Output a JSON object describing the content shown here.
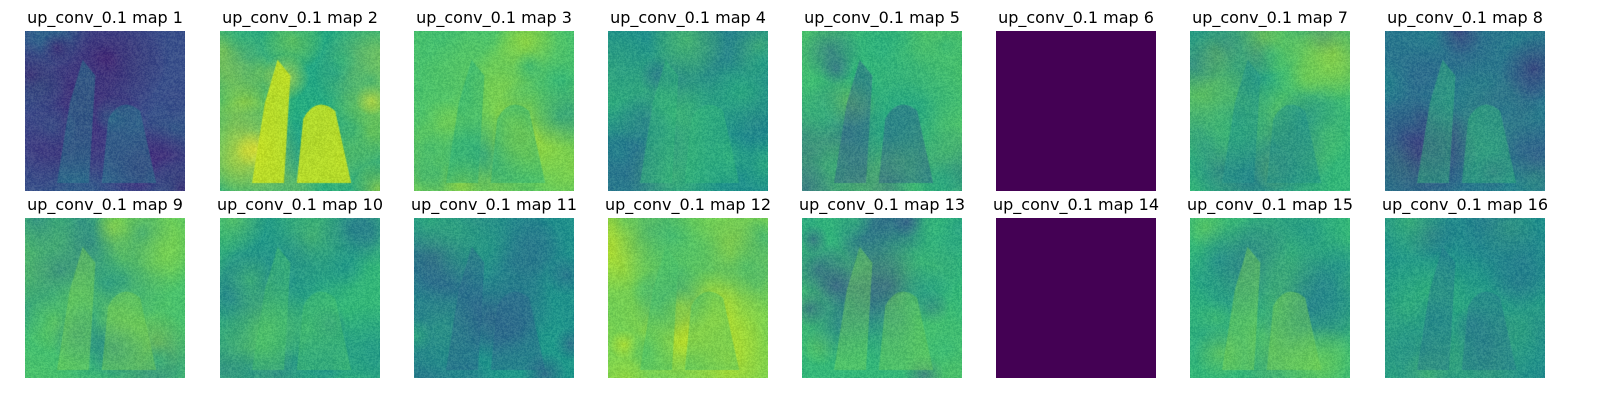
{
  "figure": {
    "panels": [
      {
        "title": "up_conv_0.1 map 1",
        "palette": [
          "#3b518b",
          "#46317e",
          "#2c718e",
          "#481b6d",
          "#26818e",
          "#3e4a89"
        ],
        "style": "dark-blotchy"
      },
      {
        "title": "up_conv_0.1 map 2",
        "palette": [
          "#27ad81",
          "#7ad151",
          "#c2df23",
          "#35b779",
          "#1f988b",
          "#fde725"
        ],
        "style": "bright-bottle"
      },
      {
        "title": "up_conv_0.1 map 3",
        "palette": [
          "#4ac16d",
          "#7ad151",
          "#2db27d",
          "#b5de2b",
          "#20a486",
          "#1f968b"
        ],
        "style": "green-bag"
      },
      {
        "title": "up_conv_0.1 map 4",
        "palette": [
          "#21918c",
          "#2a788e",
          "#35b779",
          "#1e9b8a",
          "#52c569",
          "#31688e"
        ],
        "style": "teal-mid"
      },
      {
        "title": "up_conv_0.1 map 5",
        "palette": [
          "#4ac16d",
          "#35b779",
          "#29af7f",
          "#6ece58",
          "#355f8d",
          "#1fa088"
        ],
        "style": "green-dark-patch"
      },
      {
        "title": "up_conv_0.1 map 6",
        "palette": [
          "#440154"
        ],
        "style": "solid"
      },
      {
        "title": "up_conv_0.1 map 7",
        "palette": [
          "#35b779",
          "#7ad151",
          "#21918c",
          "#a5db36",
          "#2a788e",
          "#4ac16d"
        ],
        "style": "green-bag"
      },
      {
        "title": "up_conv_0.1 map 8",
        "palette": [
          "#2a788e",
          "#3b528b",
          "#21918c",
          "#482878",
          "#35b779",
          "#31688e"
        ],
        "style": "dark-blotchy"
      },
      {
        "title": "up_conv_0.1 map 9",
        "palette": [
          "#4ac16d",
          "#35b779",
          "#7ad151",
          "#21918c",
          "#a0da39",
          "#2a788e"
        ],
        "style": "green-bag"
      },
      {
        "title": "up_conv_0.1 map 10",
        "palette": [
          "#35b779",
          "#21918c",
          "#4ac16d",
          "#2a788e",
          "#6ece58",
          "#1f988b"
        ],
        "style": "teal-mid"
      },
      {
        "title": "up_conv_0.1 map 11",
        "palette": [
          "#21918c",
          "#2a788e",
          "#31688e",
          "#35b779",
          "#3b528b",
          "#1f9e89"
        ],
        "style": "teal-mid"
      },
      {
        "title": "up_conv_0.1 map 12",
        "palette": [
          "#7ad151",
          "#a5db36",
          "#4ac16d",
          "#35b779",
          "#d2e21b",
          "#21918c"
        ],
        "style": "bright-bag"
      },
      {
        "title": "up_conv_0.1 map 13",
        "palette": [
          "#35b779",
          "#4ac16d",
          "#21918c",
          "#3b528b",
          "#6ece58",
          "#2a788e"
        ],
        "style": "green-dark-patch"
      },
      {
        "title": "up_conv_0.1 map 14",
        "palette": [
          "#440154"
        ],
        "style": "solid"
      },
      {
        "title": "up_conv_0.1 map 15",
        "palette": [
          "#35b779",
          "#21918c",
          "#7ad151",
          "#2a788e",
          "#4ac16d",
          "#1f988b"
        ],
        "style": "green-bag"
      },
      {
        "title": "up_conv_0.1 map 16",
        "palette": [
          "#21918c",
          "#35b779",
          "#2a788e",
          "#4ac16d",
          "#31688e",
          "#1f988b"
        ],
        "style": "teal-mid"
      }
    ]
  }
}
